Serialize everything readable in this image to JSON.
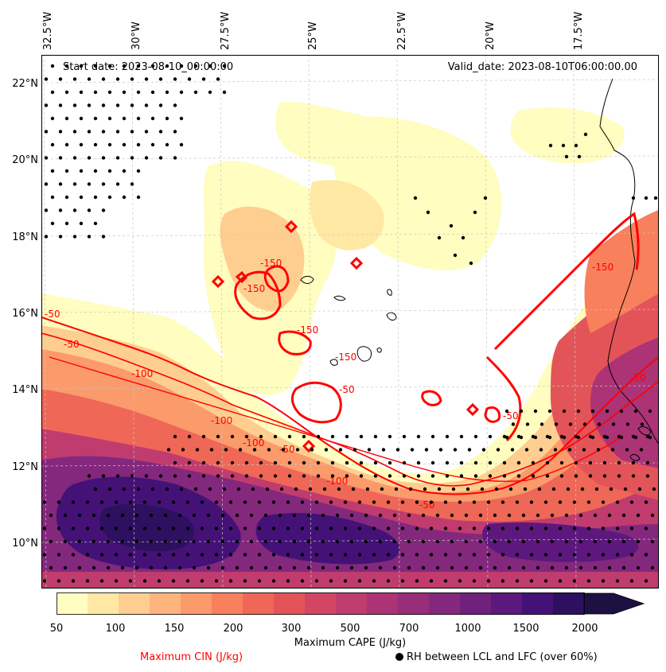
{
  "map": {
    "start_date_text": "Start date: 2023-08-10_00:00:00",
    "valid_date_text": "Valid_date: 2023-08-10T06:00:00.00",
    "longitude_labels": [
      "32.5°W",
      "30°W",
      "27.5°W",
      "25°W",
      "22.5°W",
      "20°W",
      "17.5°W"
    ],
    "latitude_labels": [
      "22°N",
      "20°N",
      "18°N",
      "16°N",
      "14°N",
      "12°N",
      "10°N"
    ],
    "extent": {
      "lon_min": -33.0,
      "lon_max": -15.5,
      "lat_min": 8.9,
      "lat_max": 22.7
    },
    "cape_colors": [
      "#fffdbf",
      "#ffe8a3",
      "#fece90",
      "#fdb47d",
      "#fb9a6b",
      "#f8805c",
      "#ef6756",
      "#e35459",
      "#d34663",
      "#c03c6e",
      "#ac3376",
      "#982d7a",
      "#84287d",
      "#70207d",
      "#5c187d",
      "#441277",
      "#2d1160",
      "#1d1142"
    ],
    "cin_line_color": "#ff0000",
    "contour_labels": [
      "-150",
      "-150",
      "-150",
      "-150",
      "-50",
      "-50",
      "-100",
      "-100",
      "-100",
      "-50",
      "-100",
      "-50",
      "-150",
      "-50",
      "-50",
      "-50"
    ]
  },
  "colorbar": {
    "ticks": [
      "50",
      "100",
      "150",
      "200",
      "300",
      "500",
      "700",
      "1000",
      "1500",
      "2000"
    ],
    "label": "Maximum CAPE (J/kg)",
    "colors": [
      "#fffdbf",
      "#ffe8a3",
      "#fece90",
      "#fdb47d",
      "#fb9a6b",
      "#f8805c",
      "#ef6756",
      "#e35459",
      "#d34663",
      "#c03c6e",
      "#ac3376",
      "#982d7a",
      "#84287d",
      "#70207d",
      "#5c187d",
      "#441277",
      "#2d1160",
      "#1d1142"
    ]
  },
  "legend": {
    "cin_label": "Maximum CIN (J/kg)",
    "rh_label": "RH between LCL and LFC (over 60%)"
  }
}
